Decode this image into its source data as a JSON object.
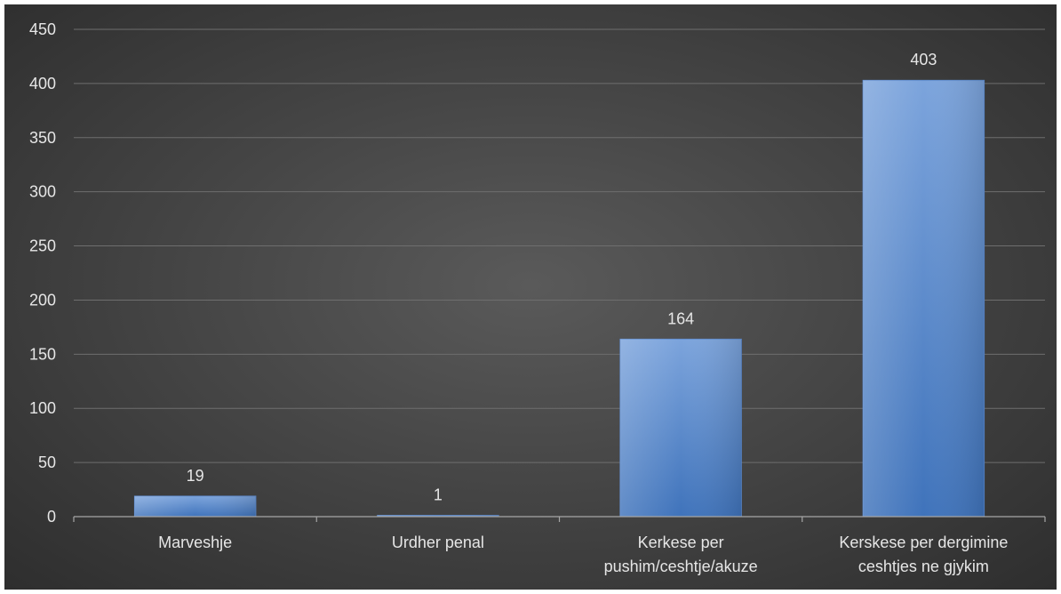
{
  "chart_data": {
    "type": "bar",
    "title": "",
    "xlabel": "",
    "ylabel": "",
    "categories": [
      [
        "Marveshje"
      ],
      [
        "Urdher penal"
      ],
      [
        "Kerkese per",
        "pushim/ceshtje/akuze"
      ],
      [
        "Kerskese per dergimine",
        "ceshtjes ne gjykim"
      ]
    ],
    "values": [
      19,
      1,
      164,
      403
    ],
    "data_labels": [
      "19",
      "1",
      "164",
      "403"
    ],
    "ylim": [
      0,
      450
    ],
    "yticks": [
      0,
      50,
      100,
      150,
      200,
      250,
      300,
      350,
      400,
      450
    ],
    "grid": true,
    "legend": "none",
    "colors": {
      "bar_top": "#7ca4dc",
      "bar_bottom": "#3f73bb",
      "gridline": "#6e6e6e",
      "axis": "#a6a6a6",
      "text": "#e6e6e6"
    }
  }
}
